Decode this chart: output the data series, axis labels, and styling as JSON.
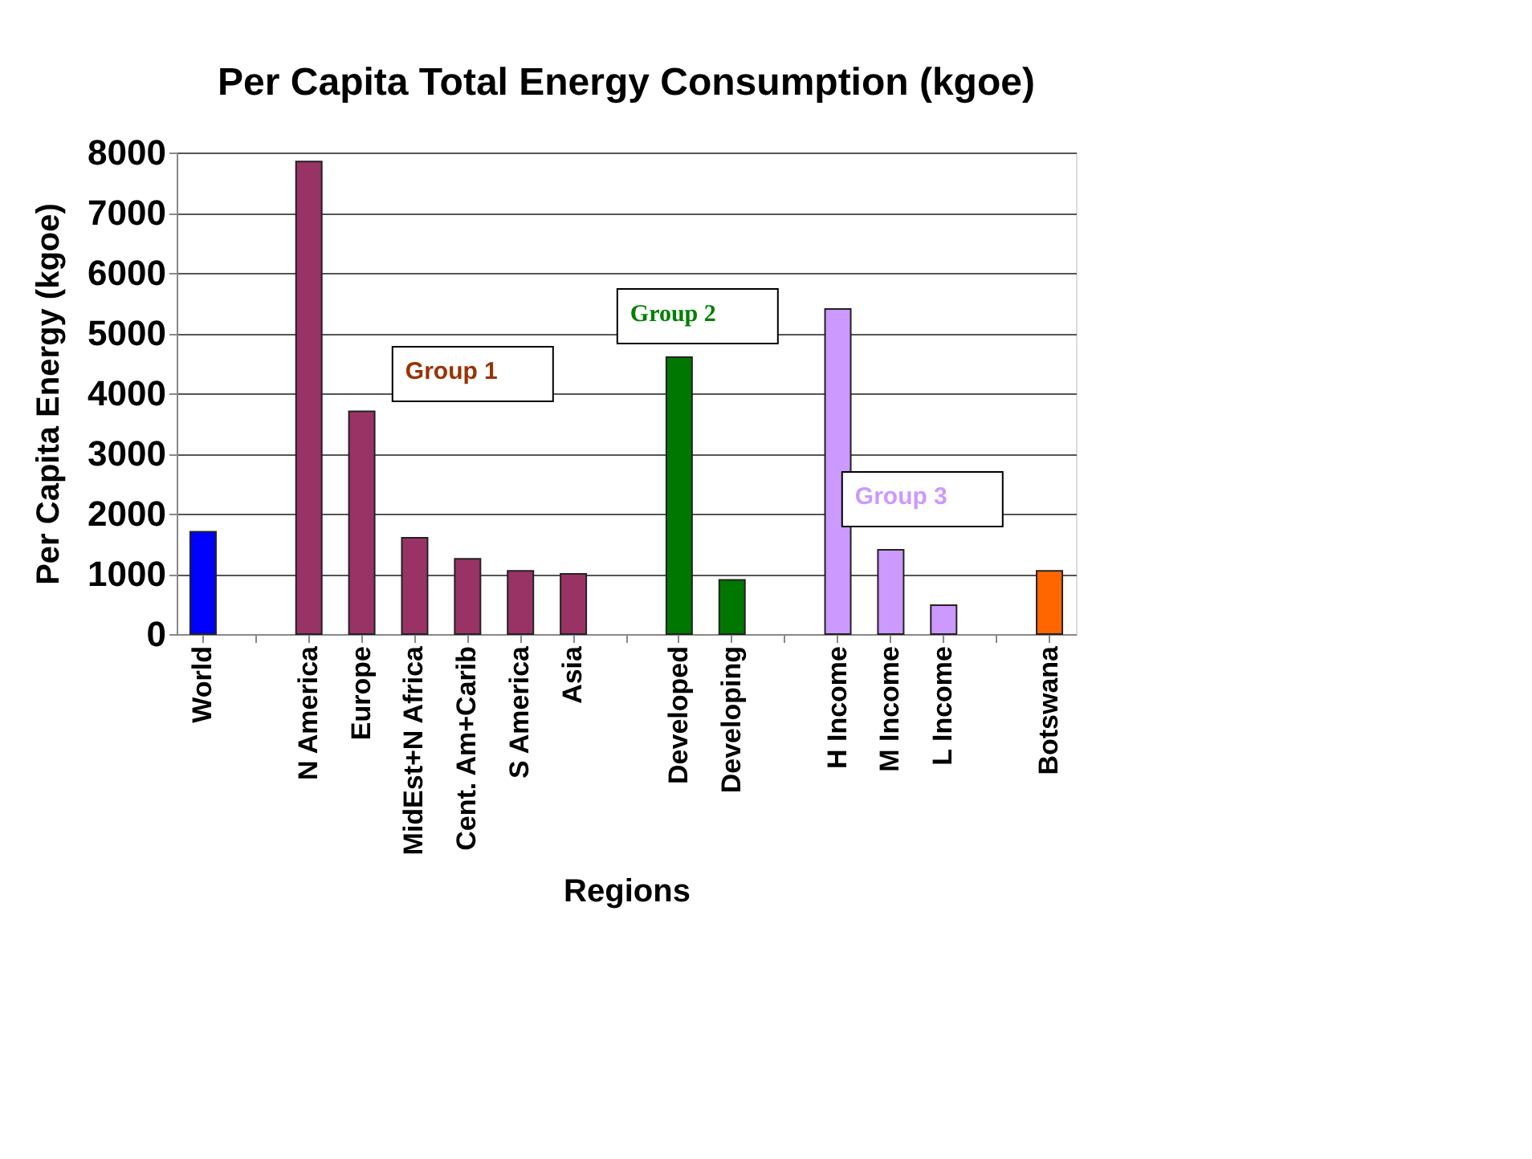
{
  "chart_data": {
    "type": "bar",
    "title": "Per Capita Total Energy Consumption (kgoe)",
    "xlabel": "Regions",
    "ylabel": "Per Capita Energy (kgoe)",
    "categories": [
      "World",
      null,
      "N America",
      "Europe",
      "MidEst+N Africa",
      "Cent. Am+Carib",
      "S America",
      "Asia",
      null,
      "Developed",
      "Developing",
      null,
      "H Income",
      "M Income",
      "L Income",
      null,
      "Botswana"
    ],
    "values": [
      1700,
      null,
      7850,
      3700,
      1600,
      1250,
      1050,
      1000,
      null,
      4600,
      900,
      null,
      5400,
      1400,
      480,
      null,
      1050
    ],
    "colors": [
      "#0000ff",
      null,
      "#993366",
      "#993366",
      "#993366",
      "#993366",
      "#993366",
      "#993366",
      null,
      "#007700",
      "#007700",
      null,
      "#cc99ff",
      "#cc99ff",
      "#cc99ff",
      null,
      "#ff6600"
    ],
    "ylim": [
      0,
      8000
    ],
    "yticks": [
      0,
      1000,
      2000,
      3000,
      4000,
      5000,
      6000,
      7000,
      8000
    ],
    "grid": "y",
    "annotations": [
      "Group 1",
      "Group 2",
      "Group 3"
    ]
  }
}
